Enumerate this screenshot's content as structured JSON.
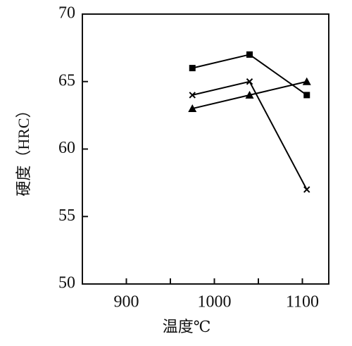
{
  "chart_data": {
    "type": "line",
    "xlabel": "温度℃",
    "ylabel": "硬度（HRC）",
    "x": [
      975,
      1040,
      1105
    ],
    "series": [
      {
        "color": "#000000",
        "marker": "square",
        "values": [
          66,
          67,
          64
        ]
      },
      {
        "color": "#000000",
        "marker": "cross",
        "values": [
          64,
          65,
          57
        ]
      },
      {
        "color": "#000000",
        "marker": "triangle",
        "values": [
          63,
          64,
          65
        ]
      }
    ],
    "xlim": [
      850,
      1130
    ],
    "xticks": [
      900,
      1000,
      1100
    ],
    "xminorticks": [
      950,
      1050
    ],
    "ylim": [
      50,
      70
    ],
    "yticks": [
      50,
      55,
      60,
      65,
      70
    ],
    "grid": false
  }
}
